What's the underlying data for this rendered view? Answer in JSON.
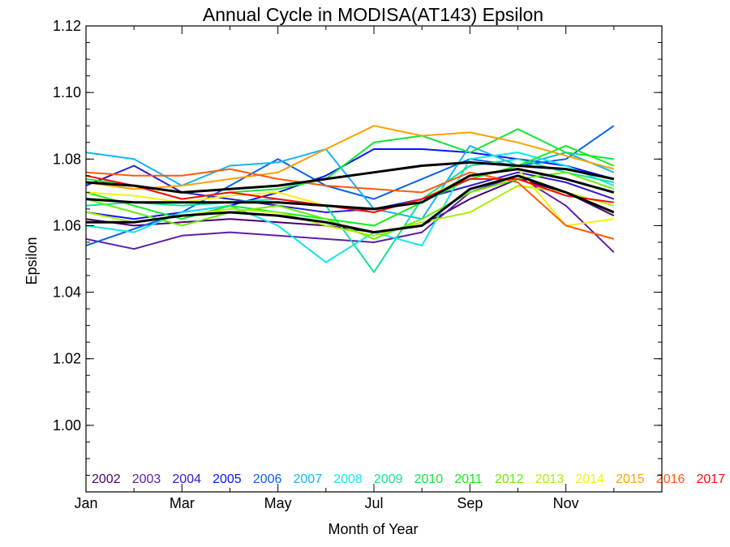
{
  "chart_data": {
    "type": "line",
    "title": "Annual Cycle in MODISA(AT143) Epsilon",
    "xlabel": "Month of Year",
    "ylabel": "Epsilon",
    "xlim": [
      1,
      13
    ],
    "ylim": [
      0.98,
      1.12
    ],
    "x_ticks": [
      {
        "value": 1,
        "label": "Jan"
      },
      {
        "value": 3,
        "label": "Mar"
      },
      {
        "value": 5,
        "label": "May"
      },
      {
        "value": 7,
        "label": "Jul"
      },
      {
        "value": 9,
        "label": "Sep"
      },
      {
        "value": 11,
        "label": "Nov"
      }
    ],
    "y_ticks": [
      {
        "value": 1.0,
        "label": "1.00"
      },
      {
        "value": 1.02,
        "label": "1.02"
      },
      {
        "value": 1.04,
        "label": "1.04"
      },
      {
        "value": 1.06,
        "label": "1.06"
      },
      {
        "value": 1.08,
        "label": "1.08"
      },
      {
        "value": 1.1,
        "label": "1.10"
      },
      {
        "value": 1.12,
        "label": "1.12"
      }
    ],
    "x": [
      1,
      2,
      3,
      4,
      5,
      6,
      7,
      8,
      9,
      10,
      11,
      12
    ],
    "series": [
      {
        "name": "2002",
        "color": "#4b0070",
        "values": [
          1.062,
          1.06,
          1.061,
          1.062,
          1.061,
          1.06,
          1.058,
          1.06,
          1.068,
          1.074,
          1.07,
          1.063
        ]
      },
      {
        "name": "2003",
        "color": "#5a1fa8",
        "values": [
          1.056,
          1.053,
          1.057,
          1.058,
          1.057,
          1.056,
          1.055,
          1.058,
          1.07,
          1.075,
          1.066,
          1.052
        ]
      },
      {
        "name": "2004",
        "color": "#2e1bd0",
        "values": [
          1.072,
          1.078,
          1.07,
          1.068,
          1.066,
          1.064,
          1.065,
          1.068,
          1.072,
          1.076,
          1.073,
          1.068
        ]
      },
      {
        "name": "2005",
        "color": "#0a14ff",
        "values": [
          1.064,
          1.062,
          1.064,
          1.066,
          1.07,
          1.075,
          1.083,
          1.083,
          1.082,
          1.08,
          1.078,
          1.074
        ]
      },
      {
        "name": "2006",
        "color": "#0a62ee",
        "values": [
          1.054,
          1.059,
          1.064,
          1.072,
          1.08,
          1.072,
          1.068,
          1.074,
          1.08,
          1.078,
          1.08,
          1.09
        ]
      },
      {
        "name": "2007",
        "color": "#12b5f5",
        "values": [
          1.082,
          1.08,
          1.072,
          1.078,
          1.079,
          1.083,
          1.065,
          1.062,
          1.084,
          1.078,
          1.082,
          1.076
        ]
      },
      {
        "name": "2008",
        "color": "#12e8e8",
        "values": [
          1.06,
          1.058,
          1.064,
          1.066,
          1.06,
          1.049,
          1.058,
          1.054,
          1.08,
          1.082,
          1.078,
          1.072
        ]
      },
      {
        "name": "2009",
        "color": "#10e39a",
        "values": [
          1.066,
          1.067,
          1.066,
          1.067,
          1.068,
          1.066,
          1.046,
          1.068,
          1.078,
          1.08,
          1.076,
          1.073
        ]
      },
      {
        "name": "2010",
        "color": "#12e63a",
        "values": [
          1.074,
          1.072,
          1.068,
          1.07,
          1.071,
          1.074,
          1.085,
          1.087,
          1.082,
          1.089,
          1.082,
          1.08
        ]
      },
      {
        "name": "2011",
        "color": "#10f01a",
        "values": [
          1.07,
          1.066,
          1.062,
          1.066,
          1.064,
          1.062,
          1.06,
          1.067,
          1.074,
          1.078,
          1.084,
          1.078
        ]
      },
      {
        "name": "2012",
        "color": "#66ee0a",
        "values": [
          1.068,
          1.064,
          1.06,
          1.064,
          1.066,
          1.062,
          1.056,
          1.062,
          1.07,
          1.074,
          1.076,
          1.071
        ]
      },
      {
        "name": "2013",
        "color": "#aaee0a",
        "values": [
          1.064,
          1.061,
          1.063,
          1.065,
          1.064,
          1.06,
          1.057,
          1.061,
          1.064,
          1.072,
          1.07,
          1.066
        ]
      },
      {
        "name": "2014",
        "color": "#f3f30a",
        "values": [
          1.07,
          1.069,
          1.067,
          1.069,
          1.07,
          1.066,
          1.064,
          1.068,
          1.075,
          1.077,
          1.06,
          1.062
        ]
      },
      {
        "name": "2015",
        "color": "#ffa000",
        "values": [
          1.073,
          1.071,
          1.072,
          1.074,
          1.076,
          1.083,
          1.09,
          1.087,
          1.088,
          1.085,
          1.081,
          1.077
        ]
      },
      {
        "name": "2016",
        "color": "#ff5a0a",
        "values": [
          1.076,
          1.075,
          1.075,
          1.077,
          1.074,
          1.072,
          1.071,
          1.07,
          1.076,
          1.073,
          1.06,
          1.056
        ]
      },
      {
        "name": "2017",
        "color": "#ff0a0a",
        "values": [
          1.075,
          1.072,
          1.068,
          1.07,
          1.068,
          1.066,
          1.064,
          1.068,
          1.074,
          1.074,
          1.069,
          1.067
        ]
      }
    ],
    "mean_series": [
      {
        "color": "#000000",
        "values": [
          1.068,
          1.067,
          1.067,
          1.067,
          1.067,
          1.066,
          1.065,
          1.067,
          1.075,
          1.077,
          1.074,
          1.07
        ]
      },
      {
        "color": "#000000",
        "values": [
          1.073,
          1.072,
          1.07,
          1.071,
          1.072,
          1.074,
          1.076,
          1.078,
          1.079,
          1.078,
          1.077,
          1.074
        ]
      },
      {
        "color": "#000000",
        "values": [
          1.061,
          1.061,
          1.063,
          1.064,
          1.063,
          1.061,
          1.058,
          1.06,
          1.071,
          1.075,
          1.07,
          1.064
        ]
      }
    ]
  }
}
